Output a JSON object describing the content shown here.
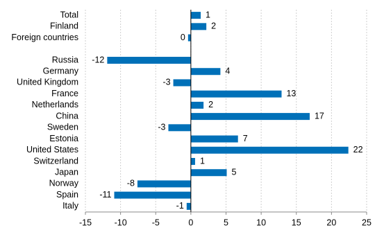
{
  "chart_data": {
    "type": "bar",
    "orientation": "horizontal",
    "categories": [
      "Total",
      "Finland",
      "Foreign countries",
      null,
      "Russia",
      "Germany",
      "United Kingdom",
      "France",
      "Netherlands",
      "China",
      "Sweden",
      "Estonia",
      "United States",
      "Switzerland",
      "Japan",
      "Norway",
      "Spain",
      "Italy"
    ],
    "values": [
      1.4,
      2.2,
      -0.4,
      null,
      -11.9,
      4.2,
      -2.5,
      12.9,
      1.8,
      16.9,
      -3.2,
      6.7,
      22.4,
      0.6,
      5.1,
      -7.6,
      -10.9,
      -0.6
    ],
    "value_labels": [
      "1",
      "2",
      "0",
      null,
      "-12",
      "4",
      "-3",
      "13",
      "2",
      "17",
      "-3",
      "7",
      "22",
      "1",
      "5",
      "-8",
      "-11",
      "-1"
    ],
    "color": "#0070b8",
    "xlim": [
      -15,
      25
    ],
    "xticks": [
      -15,
      -10,
      -5,
      0,
      5,
      10,
      15,
      20,
      25
    ],
    "grid": true
  }
}
